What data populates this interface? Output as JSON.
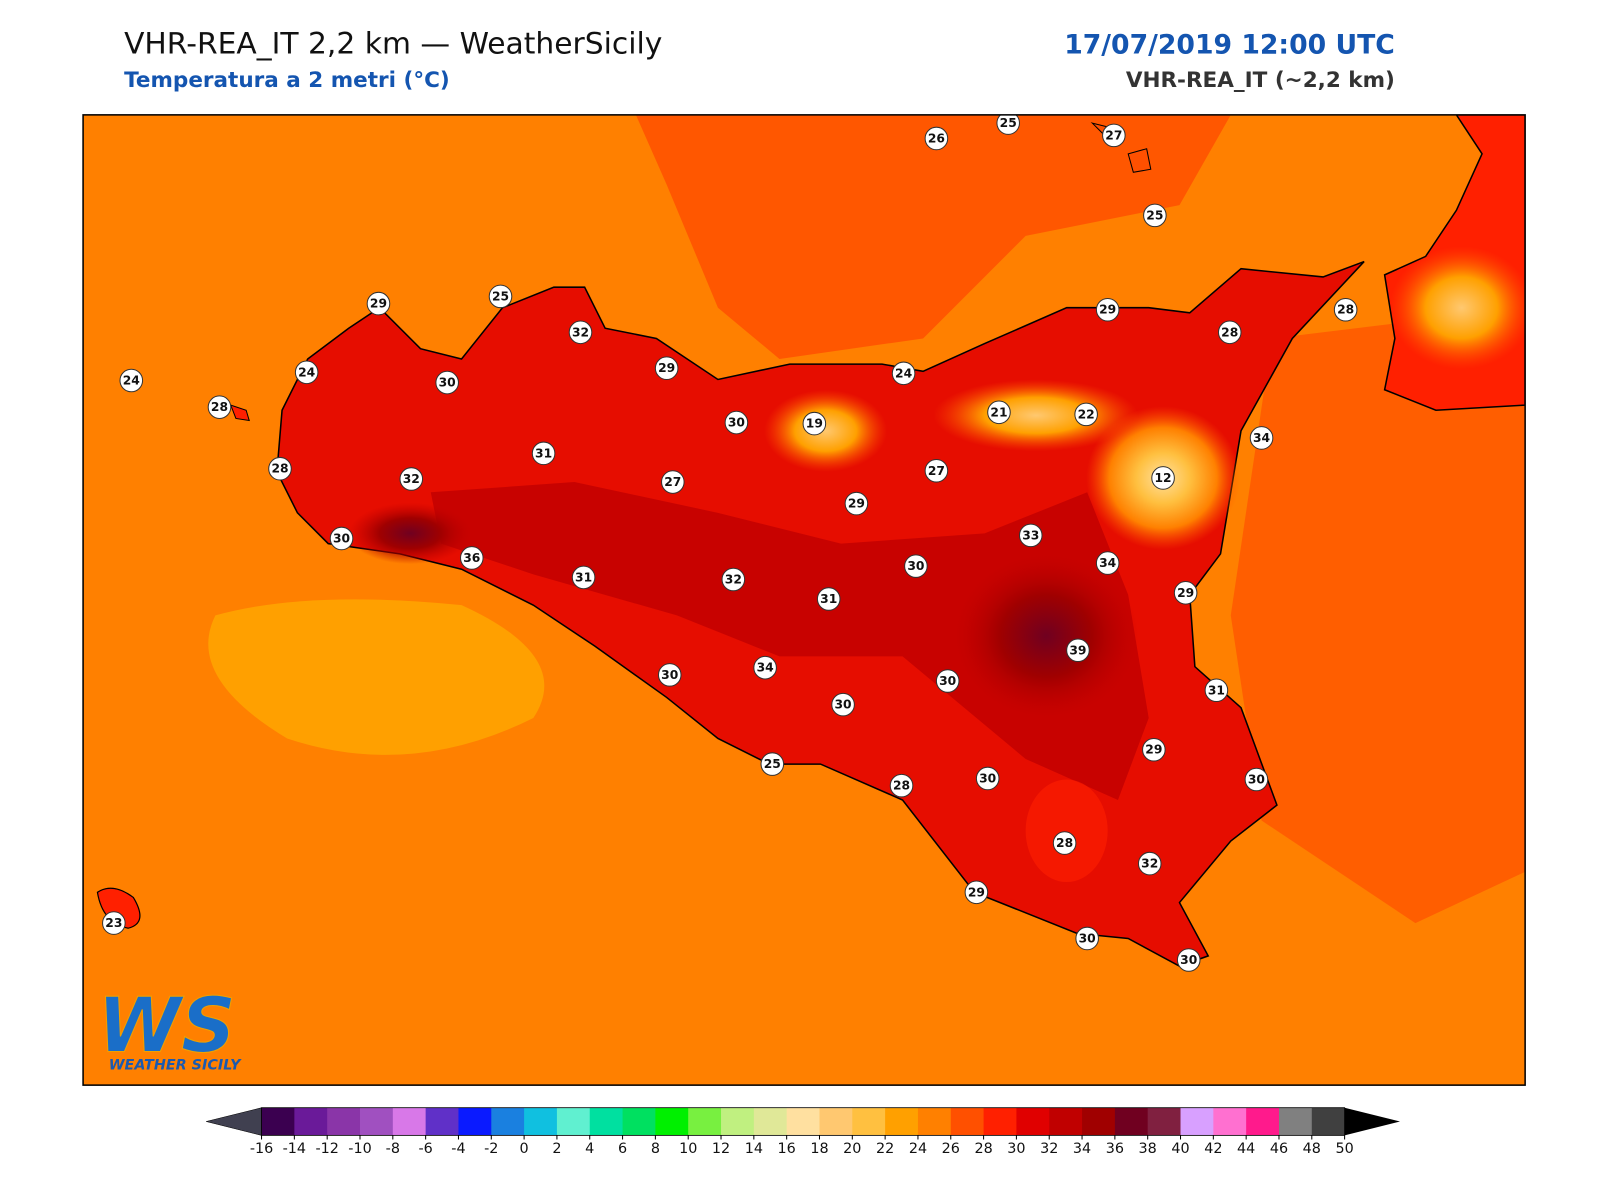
{
  "header": {
    "title": "VHR-REA_IT 2,2 km — WeatherSicily",
    "subtitle": "Temperatura a 2 metri (°C)",
    "date": "17/07/2019 12:00 UTC",
    "model": "VHR-REA_IT (~2,2 km)"
  },
  "logo": {
    "mark": "WS",
    "name": "WEATHER SICILY"
  },
  "stations": [
    26,
    25,
    27,
    25,
    29,
    25,
    32,
    29,
    24,
    24,
    30,
    28,
    30,
    19,
    24,
    21,
    22,
    29,
    28,
    28,
    34,
    12,
    31,
    32,
    28,
    27,
    27,
    29,
    30,
    36,
    31,
    32,
    31,
    30,
    33,
    34,
    29,
    39,
    30,
    34,
    30,
    30,
    31,
    25,
    28,
    30,
    29,
    30,
    28,
    32,
    29,
    30,
    30,
    23
  ],
  "colorbar": {
    "ticks": [
      -16,
      -14,
      -12,
      -10,
      -8,
      -6,
      -4,
      -2,
      0,
      2,
      4,
      6,
      8,
      10,
      12,
      14,
      16,
      18,
      20,
      22,
      24,
      26,
      28,
      30,
      32,
      34,
      36,
      38,
      40,
      42,
      44,
      46,
      48,
      50
    ],
    "colors": [
      "#3b0050",
      "#6a1a99",
      "#8a35a8",
      "#a050c0",
      "#d878e8",
      "#6030c8",
      "#0a1aff",
      "#1a80e0",
      "#10c0e0",
      "#60f0d0",
      "#00e0a0",
      "#00e060",
      "#00f000",
      "#78f040",
      "#c0f080",
      "#e0e898",
      "#ffe0a0",
      "#ffc870",
      "#ffc040",
      "#ffa000",
      "#ff8000",
      "#ff5000",
      "#ff2000",
      "#e00000",
      "#c00000",
      "#a00000",
      "#700020",
      "#802040",
      "#d8a0ff",
      "#ff70d0",
      "#ff1a8c",
      "#808080",
      "#404040"
    ],
    "under": "#404050",
    "over": "#000000"
  }
}
